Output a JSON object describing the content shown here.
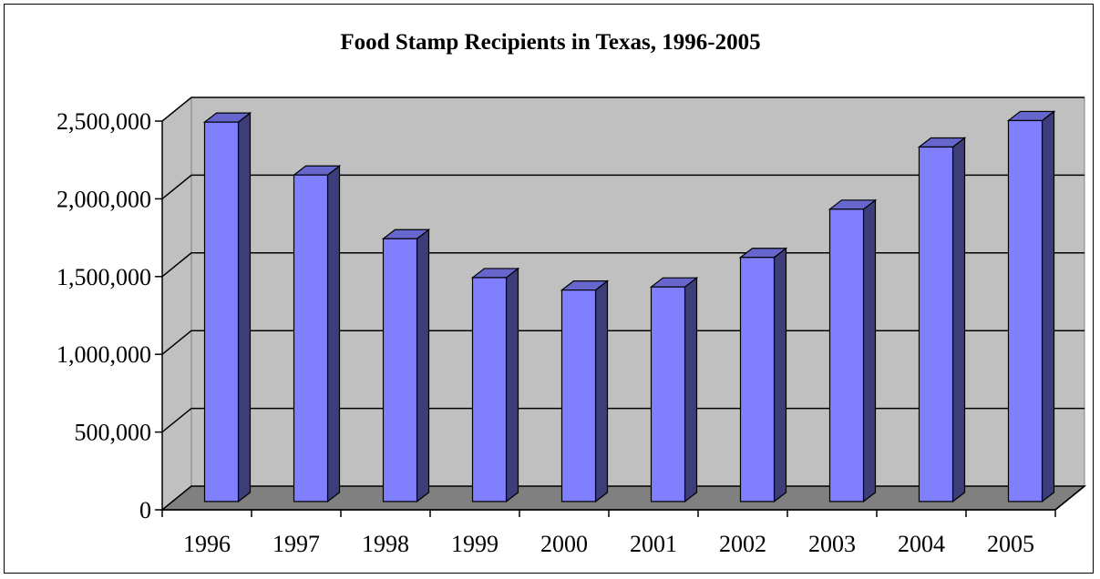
{
  "chart_data": {
    "type": "bar",
    "title": "Food Stamp Recipients in Texas, 1996-2005",
    "xlabel": "",
    "ylabel": "",
    "categories": [
      "1996",
      "1997",
      "1998",
      "1999",
      "2000",
      "2001",
      "2002",
      "2003",
      "2004",
      "2005"
    ],
    "values": [
      2440000,
      2100000,
      1690000,
      1440000,
      1360000,
      1380000,
      1570000,
      1880000,
      2280000,
      2450000
    ],
    "ylim": [
      0,
      2500000
    ],
    "yticks": [
      0,
      500000,
      1000000,
      1500000,
      2000000,
      2500000
    ],
    "ytick_labels": [
      "0",
      "500,000",
      "1,000,000",
      "1,500,000",
      "2,000,000",
      "2,500,000"
    ],
    "grid": true,
    "legend": "none",
    "style": "3d-column",
    "colors": {
      "bar_front": "#8080ff",
      "bar_side": "#3d3d7a",
      "bar_top": "#6666cc",
      "back_wall": "#c0c0c0",
      "floor": "#808080"
    }
  }
}
